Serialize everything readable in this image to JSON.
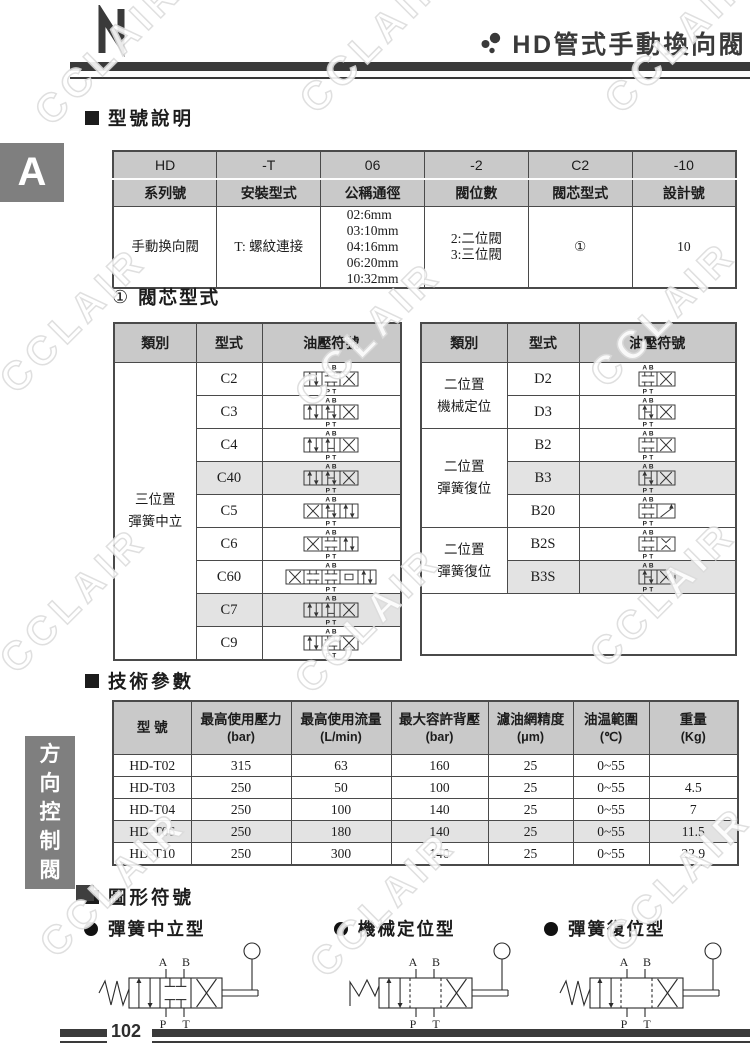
{
  "header": {
    "title": "HD管式手動換向閥"
  },
  "sidebar": {
    "tab_label": "A",
    "vertical_label": "方向控制閥"
  },
  "footer": {
    "page_number": "102"
  },
  "watermark": {
    "text": "CCLAIR"
  },
  "colors": {
    "accent_dark": "#3a3a3a",
    "table_header_bg": "#c9c9c9",
    "row_highlight_bg": "#e3e3e3",
    "sidebar_gray": "#7f7f7f"
  },
  "sections": {
    "model": {
      "heading": "型號說明"
    },
    "spool": {
      "heading_num": "①",
      "heading": "閥芯型式"
    },
    "tech": {
      "heading": "技術參數"
    },
    "symbols": {
      "heading": "圖形符號"
    }
  },
  "model_table": {
    "codes": [
      "HD",
      "-T",
      "06",
      "-2",
      "C2",
      "-10"
    ],
    "labels": [
      "系列號",
      "安裝型式",
      "公稱通徑",
      "閥位數",
      "閥芯型式",
      "設計號"
    ],
    "values": [
      "手動换向閥",
      "T: 螺紋連接",
      "02:6mm\n03:10mm\n04:16mm\n06:20mm\n10:32mm",
      "2:二位閥\n3:三位閥",
      "①",
      "10"
    ]
  },
  "spool_tables": {
    "headers": [
      "類別",
      "型式",
      "油壓符號"
    ],
    "ports": {
      "top": [
        "A",
        "B"
      ],
      "bottom": [
        "P",
        "T"
      ]
    },
    "left": {
      "group": "三位置\n彈簧中立",
      "rows": [
        {
          "type": "C2",
          "cells": [
            "flow",
            "tb",
            "cross"
          ],
          "hl": false
        },
        {
          "type": "C3",
          "cells": [
            "flow",
            "h",
            "cross"
          ],
          "hl": false
        },
        {
          "type": "C4",
          "cells": [
            "flow",
            "u",
            "cross"
          ],
          "hl": false
        },
        {
          "type": "C40",
          "cells": [
            "flow",
            "h",
            "cross"
          ],
          "hl": true
        },
        {
          "type": "C5",
          "cells": [
            "cross",
            "h",
            "flow"
          ],
          "hl": false
        },
        {
          "type": "C6",
          "cells": [
            "cross",
            "tb",
            "flow"
          ],
          "hl": false
        },
        {
          "type": "C60",
          "cells": [
            "cross",
            "tb",
            "tb",
            "sq",
            "flow"
          ],
          "hl": false
        },
        {
          "type": "C7",
          "cells": [
            "flow",
            "u",
            "cross"
          ],
          "hl": true
        },
        {
          "type": "C9",
          "cells": [
            "flow",
            "tb",
            "cross"
          ],
          "hl": false
        }
      ]
    },
    "right": {
      "groups": [
        {
          "label": "二位置\n機械定位",
          "rows": [
            {
              "type": "D2",
              "cells": [
                "tb",
                "cross"
              ],
              "hl": false
            },
            {
              "type": "D3",
              "cells": [
                "h",
                "cross"
              ],
              "hl": false
            }
          ]
        },
        {
          "label": "二位置\n彈簧復位",
          "rows": [
            {
              "type": "B2",
              "cells": [
                "tb",
                "cross"
              ],
              "hl": false
            },
            {
              "type": "B3",
              "cells": [
                "h",
                "cross"
              ],
              "hl": true
            },
            {
              "type": "B20",
              "cells": [
                "tb",
                "diag"
              ],
              "hl": false
            }
          ]
        },
        {
          "label": "二位置\n彈簧復位",
          "rows": [
            {
              "type": "B2S",
              "cells": [
                "tb",
                "vv"
              ],
              "hl": false
            },
            {
              "type": "B3S",
              "cells": [
                "h",
                "cross"
              ],
              "hl": true
            }
          ]
        }
      ]
    }
  },
  "tech_table": {
    "headers": [
      [
        "型 號",
        ""
      ],
      [
        "最高使用壓力",
        "(bar)"
      ],
      [
        "最高使用流量",
        "(L/min)"
      ],
      [
        "最大容許背壓",
        "(bar)"
      ],
      [
        "濾油網精度",
        "(μm)"
      ],
      [
        "油温範圍",
        "(℃)"
      ],
      [
        "重量",
        "(Kg)"
      ]
    ],
    "rows": [
      {
        "model": "HD-T02",
        "values": [
          "315",
          "63",
          "160",
          "25",
          "0~55",
          ""
        ],
        "hl": false
      },
      {
        "model": "HD-T03",
        "values": [
          "250",
          "50",
          "100",
          "25",
          "0~55",
          "4.5"
        ],
        "hl": false
      },
      {
        "model": "HD-T04",
        "values": [
          "250",
          "100",
          "140",
          "25",
          "0~55",
          "7"
        ],
        "hl": false
      },
      {
        "model": "HD-T06",
        "values": [
          "250",
          "180",
          "140",
          "25",
          "0~55",
          "11.5"
        ],
        "hl": true
      },
      {
        "model": "HD-T10",
        "values": [
          "250",
          "300",
          "140",
          "25",
          "0~55",
          "22.9"
        ],
        "hl": false
      }
    ]
  },
  "symbol_diagrams": [
    {
      "label": "彈簧中立型",
      "left": "spring",
      "mid": "tb"
    },
    {
      "label": "機械定位型",
      "left": "detent",
      "mid": "open"
    },
    {
      "label": "彈簧復位型",
      "left": "spring",
      "mid": "open"
    }
  ]
}
